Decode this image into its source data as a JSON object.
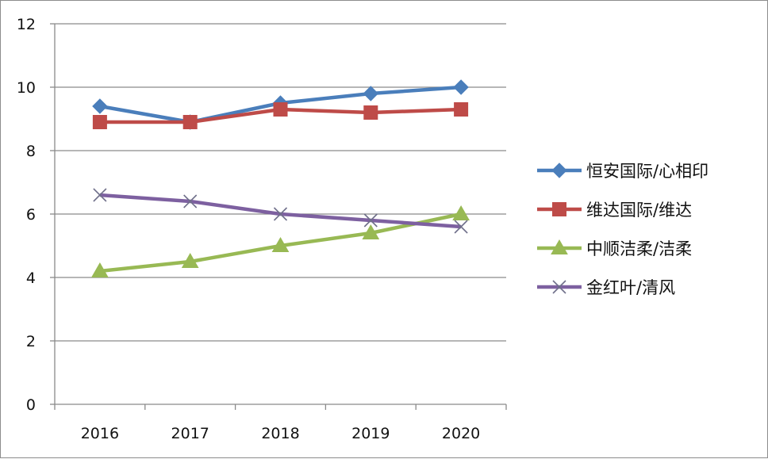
{
  "chart_data": {
    "type": "line",
    "title": "",
    "xlabel": "",
    "ylabel": "",
    "categories": [
      "2016",
      "2017",
      "2018",
      "2019",
      "2020"
    ],
    "ylim": [
      0,
      12
    ],
    "yticks": [
      0,
      2,
      4,
      6,
      8,
      10,
      12
    ],
    "grid": true,
    "legend_position": "right",
    "series": [
      {
        "name": "恒安国际/心相印",
        "values": [
          9.4,
          8.9,
          9.5,
          9.8,
          10.0
        ],
        "color": "#4a7ebb",
        "marker": "diamond"
      },
      {
        "name": "维达国际/维达",
        "values": [
          8.9,
          8.9,
          9.3,
          9.2,
          9.3
        ],
        "color": "#be4b48",
        "marker": "square"
      },
      {
        "name": "中顺洁柔/洁柔",
        "values": [
          4.2,
          4.5,
          5.0,
          5.4,
          6.0
        ],
        "color": "#98b954",
        "marker": "triangle"
      },
      {
        "name": "金红叶/清风",
        "values": [
          6.6,
          6.4,
          6.0,
          5.8,
          5.6
        ],
        "color": "#7d60a0",
        "marker": "x"
      }
    ]
  }
}
